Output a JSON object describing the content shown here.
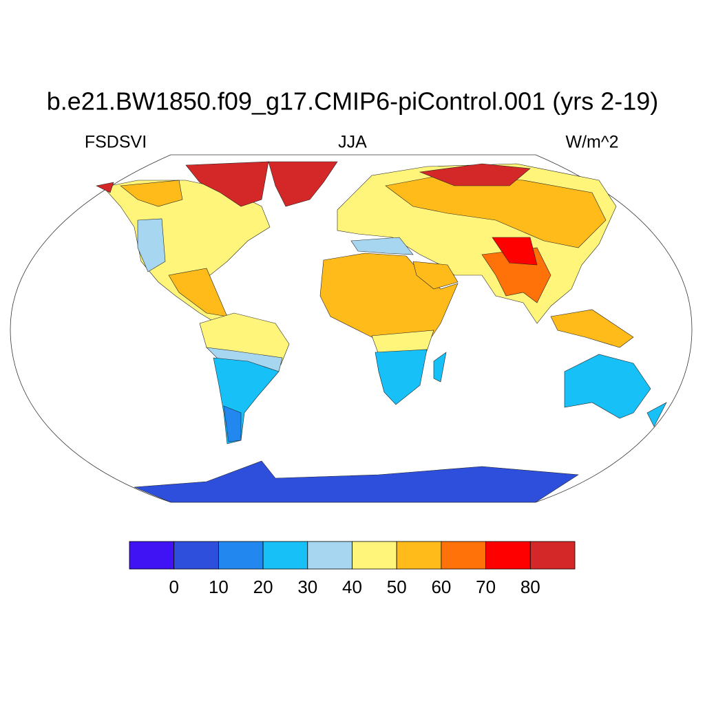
{
  "header": {
    "title": "b.e21.BW1850.f09_g17.CMIP6-piControl.001 (yrs 2-19)",
    "left": "FSDSVI",
    "center": "JJA",
    "right": "W/m^2"
  },
  "colorbar": {
    "levels": [
      0,
      10,
      20,
      30,
      40,
      50,
      60,
      70,
      80
    ],
    "colors": [
      "#3f13f4",
      "#2e4fdc",
      "#2288f0",
      "#18c0f8",
      "#a6d6f0",
      "#fff57a",
      "#ffbb19",
      "#ff7209",
      "#ff0000",
      "#d42828"
    ]
  }
}
